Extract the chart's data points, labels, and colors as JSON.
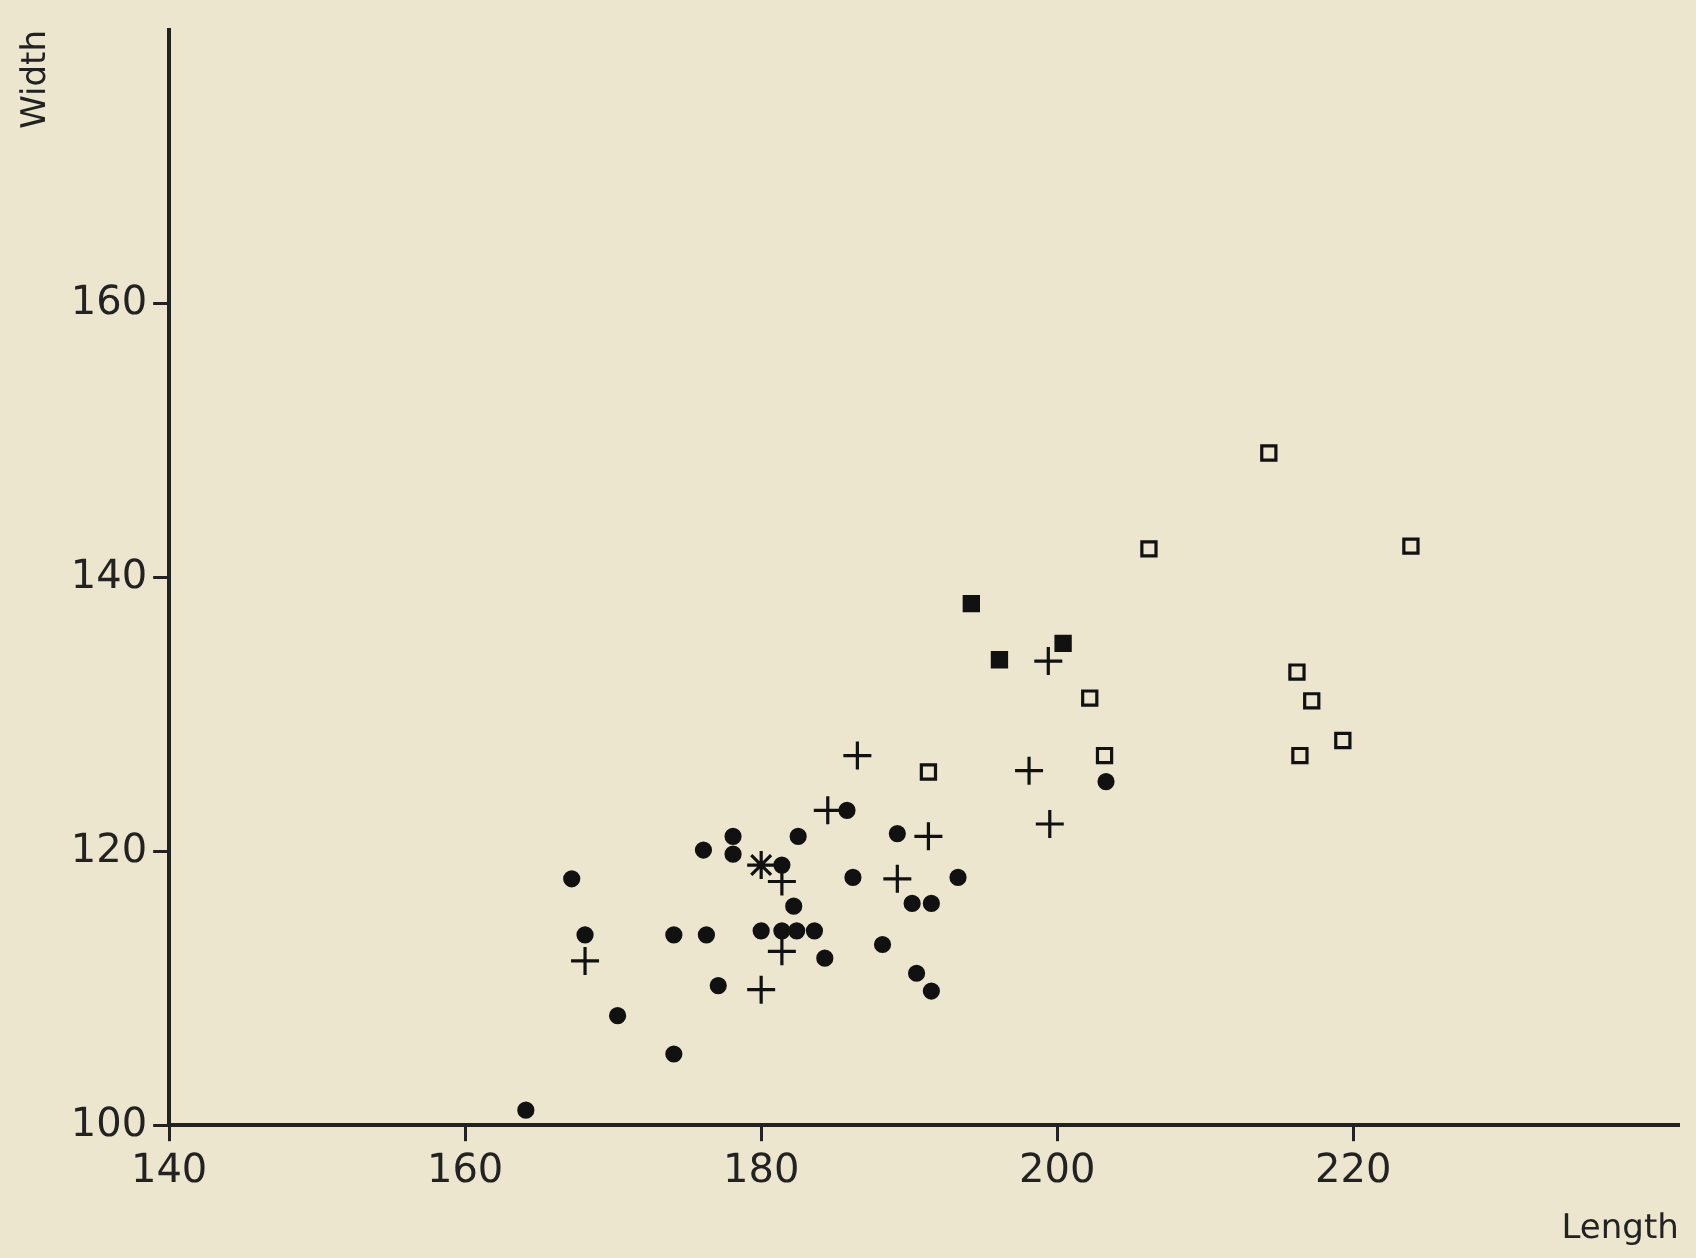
{
  "chart_data": {
    "type": "scatter",
    "xlabel": "Length",
    "ylabel": "Width",
    "xlim": [
      140,
      242
    ],
    "ylim": [
      100,
      180
    ],
    "xticks": [
      140,
      160,
      180,
      200,
      220
    ],
    "yticks": [
      100,
      120,
      140,
      160
    ],
    "grid": false,
    "legend": false,
    "series": [
      {
        "marker": "circle",
        "color": "#111111",
        "x": [
          164.1,
          167.2,
          168.1,
          170.3,
          174.1,
          174.1,
          176.1,
          176.3,
          177.1,
          178.1,
          178.1,
          180,
          181.4,
          181.4,
          182.2,
          182.5,
          182.4,
          183.6,
          184.3,
          185.8,
          186.2,
          188.2,
          189.2,
          190.2,
          191.5,
          190.5,
          191.5,
          193.3,
          203.3
        ],
        "values": [
          101.1,
          118,
          113.9,
          108,
          105.2,
          113.9,
          120.1,
          113.9,
          110.2,
          121.1,
          119.8,
          114.2,
          119,
          114.2,
          116,
          121.1,
          114.2,
          114.2,
          112.2,
          123,
          118.1,
          113.2,
          121.3,
          116.2,
          116.2,
          111.1,
          109.8,
          118.1,
          125.1
        ]
      },
      {
        "marker": "cross",
        "color": "#111111",
        "x": [
          168.1,
          180,
          181.4,
          181.4,
          184.5,
          186.5,
          189.2,
          191.3,
          198.1,
          199.4,
          199.5
        ],
        "values": [
          112,
          109.9,
          112.7,
          117.8,
          123,
          127,
          118,
          121.1,
          125.9,
          133.9,
          122
        ]
      },
      {
        "color": "#111111",
        "x": [
          180
        ],
        "values": [
          119
        ]
      },
      {
        "marker": "square",
        "color": "#111111",
        "x": [
          194.2,
          196.1,
          200.4
        ],
        "values": [
          138.1,
          134,
          135.2
        ]
      },
      {
        "marker": "square",
        "color": "#ece6cf",
        "x": [
          191.3,
          202.2,
          203.2,
          206.2,
          214.3,
          216.2,
          216.4,
          217.2,
          219.3,
          223.9
        ],
        "values": [
          125.8,
          131.2,
          127,
          142.1,
          149.1,
          133.1,
          127,
          131,
          128.1,
          142.3
        ]
      }
    ]
  }
}
